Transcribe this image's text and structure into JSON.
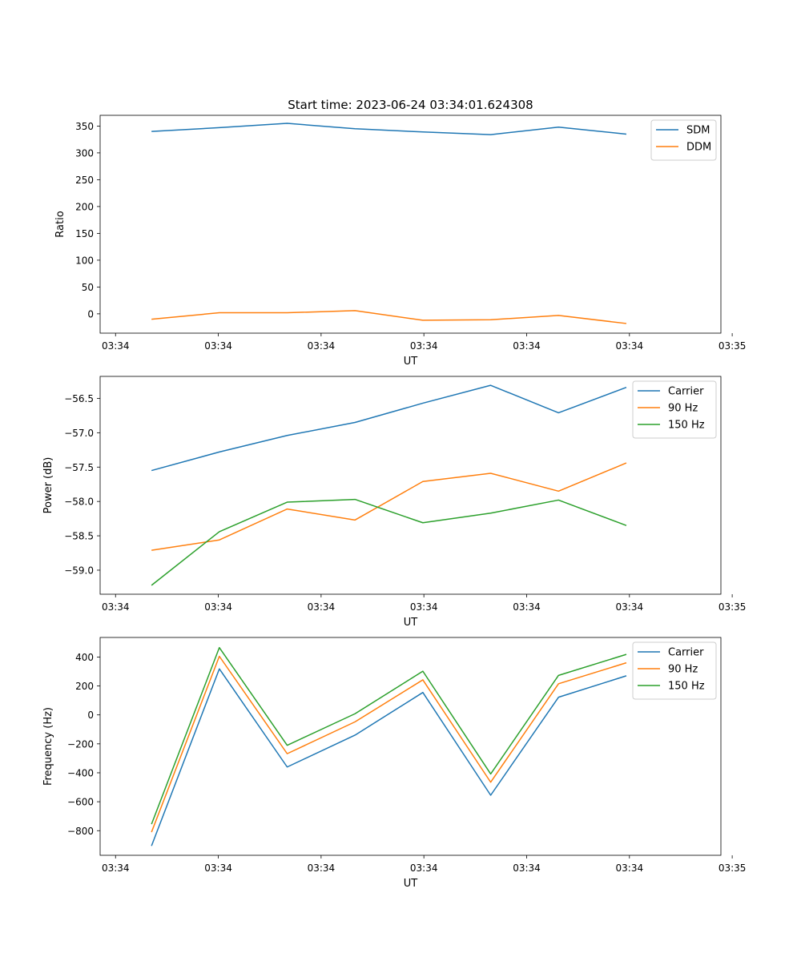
{
  "figure_title": "Start time: 2023-06-24 03:34:01.624308",
  "chart_data": [
    {
      "type": "line",
      "title": "Start time: 2023-06-24 03:34:01.624308",
      "xlabel": "UT",
      "ylabel": "Ratio",
      "x_unit": "seconds after 03:34:00",
      "xlim": [
        1.35,
        7.39
      ],
      "ylim": [
        -36,
        370
      ],
      "x": [
        1.85,
        2.51,
        3.17,
        3.83,
        4.49,
        5.15,
        5.81,
        6.47
      ],
      "xticks": [
        1.5,
        2.5,
        3.5,
        4.5,
        5.5,
        6.5,
        7.5
      ],
      "xtick_labels": [
        "03:34",
        "03:34",
        "03:34",
        "03:34",
        "03:34",
        "03:34",
        "03:35"
      ],
      "yticks": [
        0,
        50,
        100,
        150,
        200,
        250,
        300,
        350
      ],
      "ytick_labels": [
        "0",
        "50",
        "100",
        "150",
        "200",
        "250",
        "300",
        "350"
      ],
      "series": [
        {
          "name": "SDM",
          "color": "#1f77b4",
          "values": [
            340,
            347,
            355,
            345,
            339,
            334,
            348,
            335
          ]
        },
        {
          "name": "DDM",
          "color": "#ff7f0e",
          "values": [
            -10,
            2,
            2,
            6,
            -12,
            -11,
            -3,
            -18
          ]
        }
      ],
      "legend": "upper right",
      "grid": false
    },
    {
      "type": "line",
      "title": "",
      "xlabel": "UT",
      "ylabel": "Power (dB)",
      "x_unit": "seconds after 03:34:00",
      "xlim": [
        1.35,
        7.39
      ],
      "ylim": [
        -59.35,
        -56.18
      ],
      "x": [
        1.85,
        2.51,
        3.17,
        3.83,
        4.49,
        5.15,
        5.81,
        6.47
      ],
      "xticks": [
        1.5,
        2.5,
        3.5,
        4.5,
        5.5,
        6.5,
        7.5
      ],
      "xtick_labels": [
        "03:34",
        "03:34",
        "03:34",
        "03:34",
        "03:34",
        "03:34",
        "03:35"
      ],
      "yticks": [
        -59.0,
        -58.5,
        -58.0,
        -57.5,
        -57.0,
        -56.5
      ],
      "ytick_labels": [
        "−59.0",
        "−58.5",
        "−58.0",
        "−57.5",
        "−57.0",
        "−56.5"
      ],
      "series": [
        {
          "name": "Carrier",
          "color": "#1f77b4",
          "values": [
            -57.55,
            -57.28,
            -57.04,
            -56.85,
            -56.57,
            -56.31,
            -56.71,
            -56.34
          ]
        },
        {
          "name": "90 Hz",
          "color": "#ff7f0e",
          "values": [
            -58.71,
            -58.56,
            -58.11,
            -58.27,
            -57.71,
            -57.59,
            -57.85,
            -57.44
          ]
        },
        {
          "name": "150 Hz",
          "color": "#2ca02c",
          "values": [
            -59.22,
            -58.44,
            -58.01,
            -57.97,
            -58.31,
            -58.17,
            -57.98,
            -58.35
          ]
        }
      ],
      "legend": "upper right",
      "grid": false
    },
    {
      "type": "line",
      "title": "",
      "xlabel": "UT",
      "ylabel": "Frequency (Hz)",
      "x_unit": "seconds after 03:34:00",
      "xlim": [
        1.35,
        7.39
      ],
      "ylim": [
        -970,
        535
      ],
      "x": [
        1.85,
        2.51,
        3.17,
        3.83,
        4.49,
        5.15,
        5.81,
        6.47
      ],
      "xticks": [
        1.5,
        2.5,
        3.5,
        4.5,
        5.5,
        6.5,
        7.5
      ],
      "xtick_labels": [
        "03:34",
        "03:34",
        "03:34",
        "03:34",
        "03:34",
        "03:34",
        "03:35"
      ],
      "yticks": [
        -800,
        -600,
        -400,
        -200,
        0,
        200,
        400
      ],
      "ytick_labels": [
        "−800",
        "−600",
        "−400",
        "−200",
        "0",
        "200",
        "400"
      ],
      "series": [
        {
          "name": "Carrier",
          "color": "#1f77b4",
          "values": [
            -905,
            318,
            -360,
            -140,
            155,
            -555,
            122,
            270
          ]
        },
        {
          "name": "90 Hz",
          "color": "#ff7f0e",
          "values": [
            -810,
            405,
            -268,
            -48,
            242,
            -465,
            215,
            360
          ]
        },
        {
          "name": "150 Hz",
          "color": "#2ca02c",
          "values": [
            -755,
            465,
            -210,
            8,
            302,
            -408,
            273,
            418
          ]
        }
      ],
      "legend": "upper right",
      "grid": false
    }
  ]
}
